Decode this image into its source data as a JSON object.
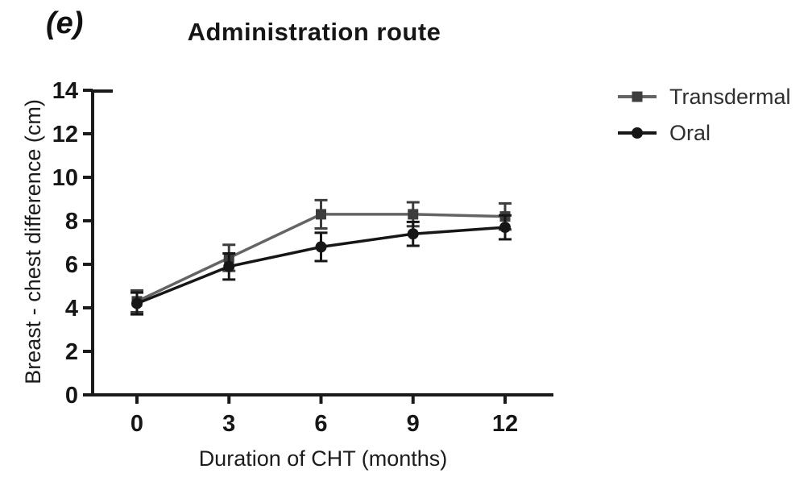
{
  "figure": {
    "panel_label": "(e)",
    "background": "#ffffff"
  },
  "chart_data": {
    "type": "line",
    "title": "Administration route",
    "xlabel": "Duration of CHT (months)",
    "ylabel": "Breast - chest difference (cm)",
    "x": [
      0,
      3,
      6,
      9,
      12
    ],
    "xticks": [
      "0",
      "3",
      "6",
      "9",
      "12"
    ],
    "yticks": [
      "0",
      "2",
      "4",
      "6",
      "8",
      "10",
      "12",
      "14"
    ],
    "xlim": [
      0,
      12
    ],
    "ylim": [
      0,
      14
    ],
    "grid": false,
    "legend_position": "right",
    "axis_color": "#1a1a1a",
    "error_bars": true,
    "series": [
      {
        "name": "Transdermal",
        "marker": "square",
        "color": "#646464",
        "marker_color": "#3d3d3d",
        "values": [
          4.3,
          6.3,
          8.3,
          8.3,
          8.2
        ],
        "errors": [
          0.5,
          0.6,
          0.65,
          0.55,
          0.6
        ]
      },
      {
        "name": "Oral",
        "marker": "circle",
        "color": "#161616",
        "marker_color": "#161616",
        "values": [
          4.2,
          5.9,
          6.8,
          7.4,
          7.7
        ],
        "errors": [
          0.5,
          0.6,
          0.65,
          0.55,
          0.55
        ]
      }
    ]
  }
}
